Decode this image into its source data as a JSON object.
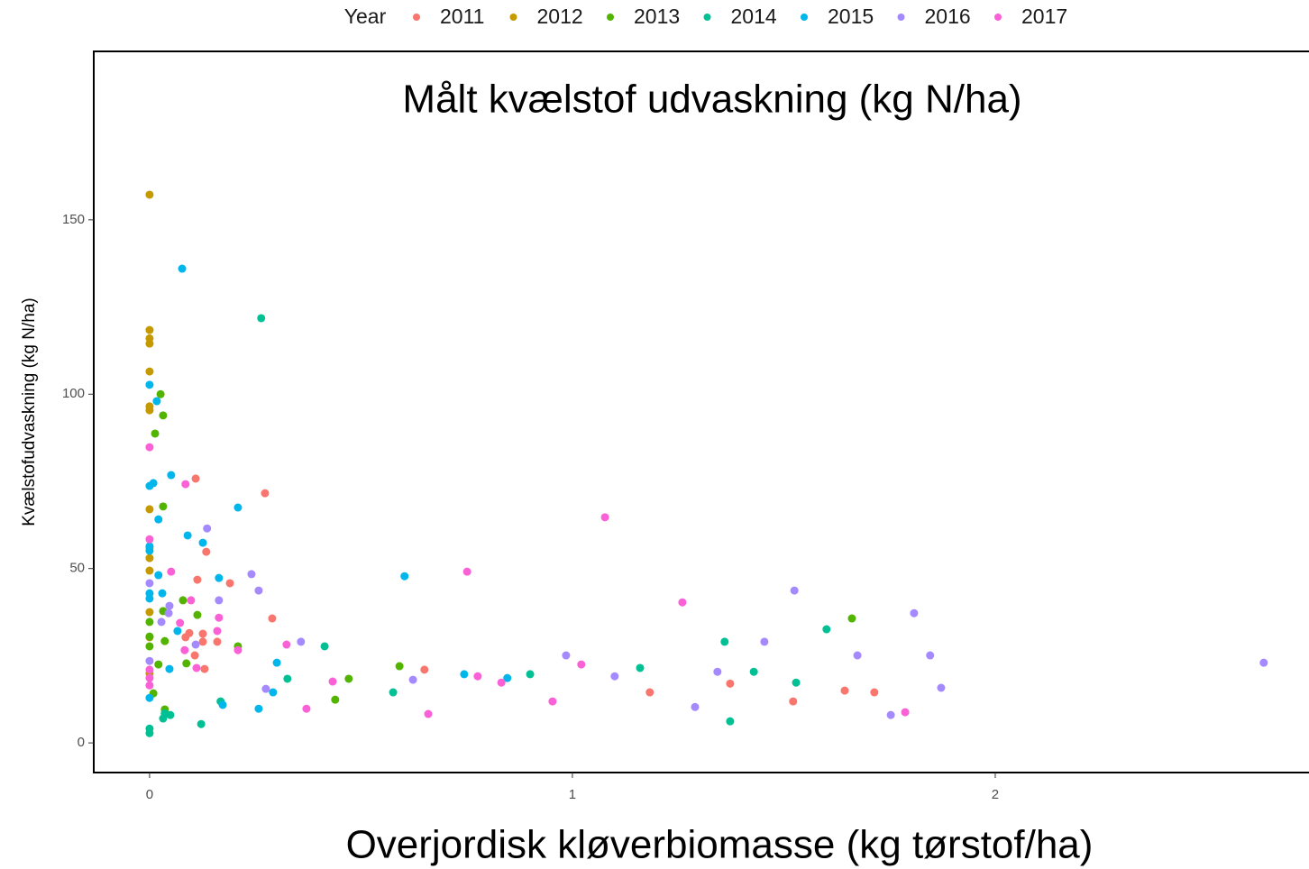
{
  "chart_data": {
    "type": "scatter",
    "title": "Målt kvælstof udvaskning (kg N/ha)",
    "xlabel": "Overjordisk kløverbiomasse (kg tørstof/ha)",
    "ylabel": "Kvælstofudvaskning (kg N/ha)",
    "legend_title": "Year",
    "legend_position": "top",
    "xlim": [
      -0.132,
      2.742
    ],
    "ylim": [
      -8.5,
      198.3
    ],
    "xticks": [
      0,
      1,
      2
    ],
    "yticks": [
      0,
      50,
      100,
      150
    ],
    "series": [
      {
        "name": "2011",
        "color": "#F8766D",
        "x": [
          0.109,
          0.273,
          0.134,
          0.113,
          0.19,
          0.29,
          0.094,
          0.126,
          0.085,
          0.16,
          0.126,
          0.107,
          0.13,
          0.65,
          1.373,
          1.183,
          1.522,
          1.644,
          1.714
        ],
        "values": [
          75.8,
          71.6,
          54.8,
          46.8,
          45.8,
          35.7,
          31.5,
          31.3,
          30.3,
          29,
          29,
          25.1,
          21.2,
          21,
          17,
          14.5,
          11.9,
          15,
          14.5
        ]
      },
      {
        "name": "2012",
        "color": "#C49A00",
        "x": [
          0,
          0,
          0,
          0,
          0,
          0,
          0,
          0,
          0,
          0,
          0,
          0,
          0,
          0
        ],
        "values": [
          157.2,
          118.4,
          116,
          114.5,
          106.5,
          96.5,
          95.4,
          67,
          55.9,
          53,
          49.4,
          37.5,
          30.3,
          19.9
        ]
      },
      {
        "name": "2013",
        "color": "#53B400",
        "x": [
          0.026,
          0.032,
          0.013,
          0.032,
          0,
          0,
          0.036,
          0.079,
          0.113,
          0.032,
          0.087,
          0.021,
          0.209,
          0.591,
          0.471,
          0.439,
          0.036,
          0.009,
          1.661,
          0
        ],
        "values": [
          100,
          93.9,
          88.7,
          67.8,
          34.7,
          30.5,
          29.2,
          40.9,
          36.7,
          37.8,
          22.8,
          22.5,
          27.7,
          22,
          18.4,
          12.4,
          9.6,
          14.2,
          35.7,
          27.7
        ]
      },
      {
        "name": "2014",
        "color": "#00C094",
        "x": [
          0.264,
          0.414,
          0.326,
          0.168,
          0.122,
          0.036,
          0.049,
          0.032,
          0.576,
          0.9,
          1.16,
          1.36,
          1.429,
          1.529,
          1.601,
          1.373,
          0,
          0
        ],
        "values": [
          121.8,
          27.7,
          18.4,
          11.9,
          5.4,
          8.5,
          8,
          7,
          14.5,
          19.7,
          21.5,
          29,
          20.4,
          17.3,
          32.6,
          6.2,
          2.8,
          4.1
        ]
      },
      {
        "name": "2015",
        "color": "#00B6EB",
        "x": [
          0.077,
          0,
          0.017,
          0.009,
          0,
          0.051,
          0.021,
          0.209,
          0.09,
          0.126,
          0,
          0,
          0.021,
          0.164,
          0.603,
          0,
          0.03,
          0,
          0.066,
          0.047,
          0.301,
          0.744,
          0.846,
          0.292,
          0.258,
          0.173,
          0
        ],
        "values": [
          136,
          102.7,
          98,
          74.5,
          73.7,
          76.8,
          64.1,
          67.5,
          59.5,
          57.4,
          56.4,
          55.1,
          48.1,
          47.3,
          47.8,
          42.9,
          42.9,
          41.4,
          32.1,
          21.2,
          23,
          19.7,
          18.6,
          14.5,
          9.8,
          10.9,
          12.9
        ]
      },
      {
        "name": "2016",
        "color": "#A58AFF",
        "x": [
          0.136,
          0.241,
          0.258,
          0.164,
          0.047,
          0.045,
          0.028,
          0.109,
          0,
          0.358,
          0,
          0.275,
          0.623,
          0.985,
          1.1,
          1.343,
          1.29,
          1.454,
          1.525,
          1.674,
          1.808,
          1.846,
          1.872,
          1.753,
          2.635
        ],
        "values": [
          61.5,
          48.4,
          43.7,
          40.9,
          39.3,
          37.2,
          34.7,
          28.2,
          45.8,
          29,
          23.5,
          15.5,
          18.1,
          25.1,
          19.1,
          20.4,
          10.3,
          29,
          43.7,
          25.1,
          37.2,
          25.1,
          15.8,
          8,
          23
        ]
      },
      {
        "name": "2017",
        "color": "#FB61D7",
        "x": [
          0,
          0.085,
          0,
          0.051,
          0.098,
          0.072,
          0.164,
          0.16,
          0.083,
          0.111,
          0.209,
          0.324,
          0,
          0.433,
          0.371,
          0.659,
          0.751,
          0.776,
          0.832,
          0.953,
          1.021,
          1.077,
          1.26,
          1.787,
          0,
          0
        ],
        "values": [
          84.8,
          74.2,
          58.4,
          49.1,
          40.9,
          34.4,
          35.9,
          32.1,
          26.6,
          21.5,
          26.6,
          28.2,
          21,
          17.6,
          9.8,
          8.3,
          49.1,
          19.1,
          17.3,
          11.9,
          22.5,
          64.7,
          40.3,
          8.8,
          16.5,
          18.6
        ]
      }
    ]
  }
}
